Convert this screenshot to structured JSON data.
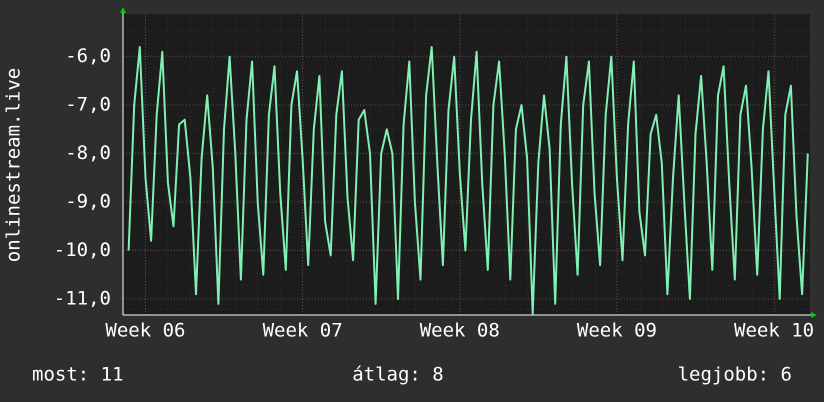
{
  "chart_data": {
    "type": "line",
    "ylabel": "onlinestream.live",
    "ylim": [
      -11.33,
      -5.12
    ],
    "yticks": [
      {
        "value": -6,
        "label": "-6,0"
      },
      {
        "value": -7,
        "label": "-7,0"
      },
      {
        "value": -8,
        "label": "-8,0"
      },
      {
        "value": -9,
        "label": "-9,0"
      },
      {
        "value": -10,
        "label": "-10,0"
      },
      {
        "value": -11,
        "label": "-11,0"
      }
    ],
    "xlim": [
      -1,
      29.6
    ],
    "xticks": [
      {
        "value": 0,
        "label": "Week 06"
      },
      {
        "value": 7,
        "label": "Week 07"
      },
      {
        "value": 14,
        "label": "Week 08"
      },
      {
        "value": 21,
        "label": "Week 09"
      },
      {
        "value": 28,
        "label": "Week 10"
      }
    ],
    "grid": true,
    "x": [
      -0.75,
      -0.5,
      -0.25,
      0,
      0.25,
      0.5,
      0.75,
      1,
      1.25,
      1.5,
      1.75,
      2,
      2.25,
      2.5,
      2.75,
      3,
      3.25,
      3.5,
      3.75,
      4,
      4.25,
      4.5,
      4.75,
      5,
      5.25,
      5.5,
      5.75,
      6,
      6.25,
      6.5,
      6.75,
      7,
      7.25,
      7.5,
      7.75,
      8,
      8.25,
      8.5,
      8.75,
      9,
      9.25,
      9.5,
      9.75,
      10,
      10.25,
      10.5,
      10.75,
      11,
      11.25,
      11.5,
      11.75,
      12,
      12.25,
      12.5,
      12.75,
      13,
      13.25,
      13.5,
      13.75,
      14,
      14.25,
      14.5,
      14.75,
      15,
      15.25,
      15.5,
      15.75,
      16,
      16.25,
      16.5,
      16.75,
      17,
      17.25,
      17.5,
      17.75,
      18,
      18.25,
      18.5,
      18.75,
      19,
      19.25,
      19.5,
      19.75,
      20,
      20.25,
      20.5,
      20.75,
      21,
      21.25,
      21.5,
      21.75,
      22,
      22.25,
      22.5,
      22.75,
      23,
      23.25,
      23.5,
      23.75,
      24,
      24.25,
      24.5,
      24.75,
      25,
      25.25,
      25.5,
      25.75,
      26,
      26.25,
      26.5,
      26.75,
      27,
      27.25,
      27.5,
      27.75,
      28,
      28.25,
      28.5,
      28.75,
      29,
      29.25,
      29.5
    ],
    "series": [
      {
        "color": "#80f0b4",
        "values": [
          -10.0,
          -7.0,
          -5.8,
          -8.5,
          -9.8,
          -7.2,
          -5.9,
          -8.6,
          -9.5,
          -7.4,
          -7.3,
          -8.5,
          -10.9,
          -8.1,
          -6.8,
          -8.3,
          -11.1,
          -7.5,
          -6.0,
          -8.0,
          -10.6,
          -7.3,
          -6.1,
          -9.0,
          -10.5,
          -7.2,
          -6.2,
          -8.8,
          -10.4,
          -7.0,
          -6.3,
          -8.1,
          -10.3,
          -7.5,
          -6.4,
          -9.4,
          -10.1,
          -7.2,
          -6.3,
          -8.9,
          -10.2,
          -7.3,
          -7.1,
          -8.0,
          -11.1,
          -8.0,
          -7.5,
          -8.0,
          -11.0,
          -7.4,
          -6.1,
          -9.0,
          -10.6,
          -6.8,
          -5.8,
          -8.2,
          -10.3,
          -7.1,
          -6.0,
          -8.4,
          -10.0,
          -7.3,
          -5.9,
          -8.6,
          -10.4,
          -7.0,
          -6.1,
          -8.0,
          -10.6,
          -7.5,
          -7.0,
          -8.1,
          -11.3,
          -8.2,
          -6.8,
          -7.9,
          -11.1,
          -7.4,
          -6.0,
          -8.6,
          -10.5,
          -7.0,
          -6.1,
          -8.8,
          -10.3,
          -7.2,
          -6.0,
          -8.5,
          -10.2,
          -7.4,
          -6.1,
          -9.2,
          -10.1,
          -7.6,
          -7.2,
          -8.2,
          -10.9,
          -8.5,
          -6.8,
          -9.0,
          -11.0,
          -7.6,
          -6.4,
          -8.2,
          -10.4,
          -6.8,
          -6.2,
          -8.6,
          -10.6,
          -7.2,
          -6.6,
          -8.3,
          -10.5,
          -7.5,
          -6.3,
          -8.7,
          -11.0,
          -7.2,
          -6.6,
          -9.3,
          -10.9,
          -8.0
        ]
      }
    ],
    "footer": [
      "most: 11",
      "átlag: 8",
      "legjobb: 6"
    ]
  }
}
